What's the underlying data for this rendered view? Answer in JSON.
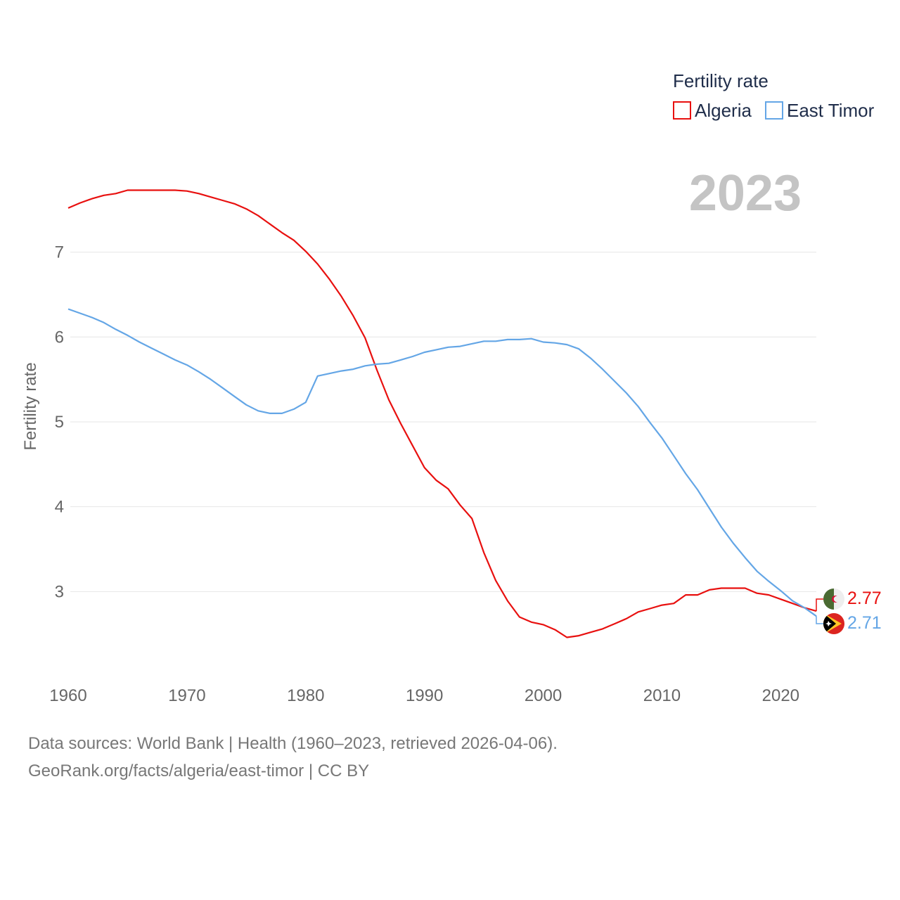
{
  "chart_data": {
    "type": "line",
    "ylabel": "Fertility rate",
    "xlim": [
      1960,
      2023
    ],
    "ylim": [
      2.0,
      7.9
    ],
    "x_ticks": [
      1960,
      1970,
      1980,
      1990,
      2000,
      2010,
      2020
    ],
    "y_ticks": [
      3,
      4,
      5,
      6,
      7
    ],
    "year_label": "2023",
    "legend": {
      "title": "Fertility rate",
      "position": "top-right"
    },
    "x": [
      1960,
      1961,
      1962,
      1963,
      1964,
      1965,
      1966,
      1967,
      1968,
      1969,
      1970,
      1971,
      1972,
      1973,
      1974,
      1975,
      1976,
      1977,
      1978,
      1979,
      1980,
      1981,
      1982,
      1983,
      1984,
      1985,
      1986,
      1987,
      1988,
      1989,
      1990,
      1991,
      1992,
      1993,
      1994,
      1995,
      1996,
      1997,
      1998,
      1999,
      2000,
      2001,
      2002,
      2003,
      2004,
      2005,
      2006,
      2007,
      2008,
      2009,
      2010,
      2011,
      2012,
      2013,
      2014,
      2015,
      2016,
      2017,
      2018,
      2019,
      2020,
      2021,
      2022,
      2023
    ],
    "series": [
      {
        "name": "Algeria",
        "color": "#e8100f",
        "end_value_label": "2.77",
        "flag": "algeria-flag",
        "values": [
          7.52,
          7.58,
          7.63,
          7.67,
          7.69,
          7.73,
          7.73,
          7.73,
          7.73,
          7.73,
          7.72,
          7.69,
          7.65,
          7.61,
          7.57,
          7.51,
          7.43,
          7.33,
          7.23,
          7.14,
          7.01,
          6.86,
          6.68,
          6.48,
          6.25,
          5.99,
          5.61,
          5.26,
          4.98,
          4.72,
          4.46,
          4.31,
          4.21,
          4.02,
          3.86,
          3.46,
          3.13,
          2.89,
          2.7,
          2.64,
          2.61,
          2.55,
          2.46,
          2.48,
          2.52,
          2.56,
          2.62,
          2.68,
          2.76,
          2.8,
          2.84,
          2.86,
          2.96,
          2.96,
          3.02,
          3.04,
          3.04,
          3.04,
          2.98,
          2.96,
          2.91,
          2.86,
          2.81,
          2.77
        ]
      },
      {
        "name": "East Timor",
        "color": "#64a6e6",
        "end_value_label": "2.71",
        "flag": "east-timor-flag",
        "values": [
          6.33,
          6.28,
          6.23,
          6.17,
          6.09,
          6.02,
          5.94,
          5.87,
          5.8,
          5.73,
          5.67,
          5.59,
          5.5,
          5.4,
          5.3,
          5.2,
          5.13,
          5.1,
          5.1,
          5.15,
          5.23,
          5.54,
          5.57,
          5.6,
          5.62,
          5.66,
          5.68,
          5.69,
          5.73,
          5.77,
          5.82,
          5.85,
          5.88,
          5.89,
          5.92,
          5.95,
          5.95,
          5.97,
          5.97,
          5.98,
          5.94,
          5.93,
          5.91,
          5.86,
          5.75,
          5.62,
          5.48,
          5.34,
          5.18,
          4.99,
          4.81,
          4.6,
          4.39,
          4.2,
          3.98,
          3.76,
          3.57,
          3.4,
          3.24,
          3.12,
          3.01,
          2.89,
          2.81,
          2.71
        ]
      }
    ]
  },
  "footer": {
    "line1": "Data sources: World Bank | Health (1960–2023, retrieved 2026-04-06).",
    "line2": "GeoRank.org/facts/algeria/east-timor | CC BY"
  }
}
